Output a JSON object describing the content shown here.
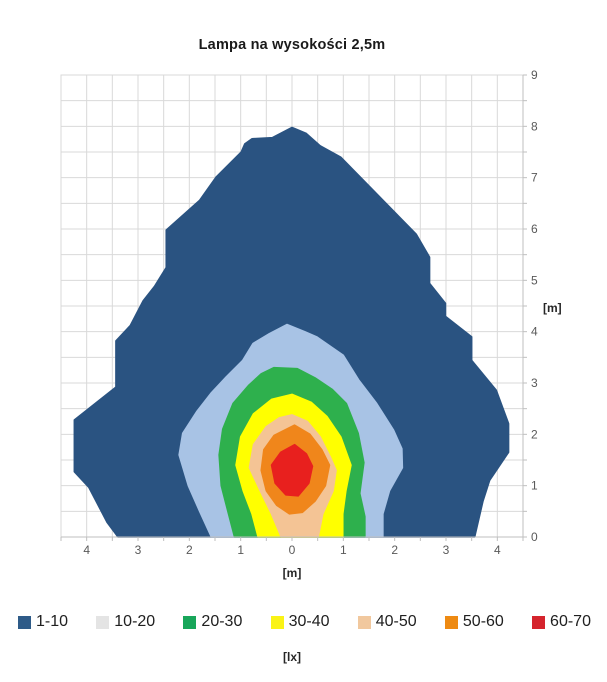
{
  "chart_data": {
    "type": "contour",
    "title": "Lampa na wysokości 2,5m",
    "xlabel": "[m]",
    "ylabel": "[m]",
    "legend_label": "[lx]",
    "x_range": [
      -4.5,
      4.5
    ],
    "y_range": [
      0,
      9
    ],
    "grid_step": 0.5,
    "grid_on": true,
    "grid_color": "#D9D9D9",
    "axis_color": "#BFBFBF",
    "tick_color": "#BFBFBF",
    "tick_label_color": "#595959",
    "x_tick_values": [
      -4,
      -3,
      -2,
      -1,
      0,
      1,
      2,
      3,
      4
    ],
    "x_tick_labels": [
      "4",
      "3",
      "2",
      "1",
      "0",
      "1",
      "2",
      "3",
      "4"
    ],
    "y_tick_values": [
      0,
      1,
      2,
      3,
      4,
      5,
      6,
      7,
      8,
      9
    ],
    "y_tick_labels": [
      "0",
      "1",
      "2",
      "3",
      "4",
      "5",
      "6",
      "7",
      "8",
      "9"
    ],
    "legend_position": "bottom",
    "bands": [
      {
        "label": "1-10",
        "color": "#2A5381",
        "legend_color": "#2E5B88",
        "polygon": [
          [
            0,
            7.98
          ],
          [
            0.28,
            7.86
          ],
          [
            0.55,
            7.62
          ],
          [
            0.95,
            7.4
          ],
          [
            2.42,
            5.9
          ],
          [
            2.68,
            5.45
          ],
          [
            2.68,
            4.94
          ],
          [
            2.99,
            4.55
          ],
          [
            2.99,
            4.3
          ],
          [
            3.5,
            3.9
          ],
          [
            3.5,
            3.44
          ],
          [
            3.98,
            2.86
          ],
          [
            4.22,
            2.21
          ],
          [
            4.22,
            1.65
          ],
          [
            3.85,
            1.1
          ],
          [
            3.72,
            0.7
          ],
          [
            3.56,
            0
          ],
          [
            -3.39,
            0
          ],
          [
            -3.6,
            0.28
          ],
          [
            -3.96,
            0.97
          ],
          [
            -4.24,
            1.27
          ],
          [
            -4.24,
            2.28
          ],
          [
            -3.43,
            2.92
          ],
          [
            -3.43,
            3.82
          ],
          [
            -3.15,
            4.12
          ],
          [
            -2.9,
            4.6
          ],
          [
            -2.68,
            4.88
          ],
          [
            -2.45,
            5.25
          ],
          [
            -2.45,
            5.98
          ],
          [
            -1.8,
            6.56
          ],
          [
            -1.48,
            7.01
          ],
          [
            -0.99,
            7.5
          ],
          [
            -0.92,
            7.66
          ],
          [
            -0.78,
            7.76
          ],
          [
            -0.38,
            7.78
          ]
        ]
      },
      {
        "label": "10-20",
        "color": "#A8C3E5",
        "legend_color": "#E4E4E4",
        "polygon": [
          [
            -0.1,
            4.14
          ],
          [
            0.25,
            4.0
          ],
          [
            0.48,
            3.9
          ],
          [
            1.0,
            3.54
          ],
          [
            1.3,
            3.06
          ],
          [
            1.65,
            2.6
          ],
          [
            1.98,
            2.08
          ],
          [
            2.14,
            1.72
          ],
          [
            2.15,
            1.35
          ],
          [
            1.9,
            0.9
          ],
          [
            1.77,
            0.45
          ],
          [
            1.77,
            0
          ],
          [
            -1.57,
            0
          ],
          [
            -1.8,
            0.5
          ],
          [
            -2.02,
            1.0
          ],
          [
            -2.2,
            1.6
          ],
          [
            -2.13,
            2.02
          ],
          [
            -1.85,
            2.45
          ],
          [
            -1.58,
            2.8
          ],
          [
            -1.28,
            3.12
          ],
          [
            -0.96,
            3.44
          ],
          [
            -0.76,
            3.77
          ],
          [
            -0.44,
            3.96
          ]
        ]
      },
      {
        "label": "20-30",
        "color": "#2EB04D",
        "legend_color": "#18A65A",
        "polygon": [
          [
            -0.35,
            3.3
          ],
          [
            0.1,
            3.28
          ],
          [
            0.45,
            3.1
          ],
          [
            0.78,
            2.88
          ],
          [
            1.06,
            2.6
          ],
          [
            1.29,
            2.02
          ],
          [
            1.4,
            1.45
          ],
          [
            1.32,
            0.85
          ],
          [
            1.42,
            0.4
          ],
          [
            1.42,
            0
          ],
          [
            -1.12,
            0
          ],
          [
            -1.25,
            0.5
          ],
          [
            -1.38,
            1.0
          ],
          [
            -1.42,
            1.6
          ],
          [
            -1.35,
            2.1
          ],
          [
            -1.15,
            2.6
          ],
          [
            -0.85,
            2.95
          ],
          [
            -0.6,
            3.18
          ]
        ]
      },
      {
        "label": "30-40",
        "color": "#FFFF00",
        "legend_color": "#FAF316",
        "polygon": [
          [
            0,
            2.78
          ],
          [
            0.38,
            2.62
          ],
          [
            0.68,
            2.35
          ],
          [
            0.95,
            1.95
          ],
          [
            1.15,
            1.4
          ],
          [
            1.05,
            0.9
          ],
          [
            0.99,
            0.45
          ],
          [
            0.99,
            0
          ],
          [
            -0.66,
            0
          ],
          [
            -0.78,
            0.45
          ],
          [
            -0.95,
            0.9
          ],
          [
            -1.09,
            1.4
          ],
          [
            -1.0,
            1.95
          ],
          [
            -0.75,
            2.4
          ],
          [
            -0.4,
            2.68
          ]
        ]
      },
      {
        "label": "40-50",
        "color": "#F4C495",
        "legend_color": "#F1C89E",
        "polygon": [
          [
            0,
            2.38
          ],
          [
            0.3,
            2.25
          ],
          [
            0.55,
            1.95
          ],
          [
            0.75,
            1.55
          ],
          [
            0.86,
            1.3
          ],
          [
            0.8,
            0.9
          ],
          [
            0.6,
            0.45
          ],
          [
            0.51,
            0
          ],
          [
            -0.21,
            0
          ],
          [
            -0.4,
            0.45
          ],
          [
            -0.62,
            0.9
          ],
          [
            -0.83,
            1.35
          ],
          [
            -0.75,
            1.8
          ],
          [
            -0.5,
            2.15
          ],
          [
            -0.25,
            2.32
          ]
        ]
      },
      {
        "label": "50-60",
        "color": "#F0861B",
        "legend_color": "#EE8A12",
        "polygon": [
          [
            0.05,
            2.18
          ],
          [
            0.35,
            2.0
          ],
          [
            0.58,
            1.7
          ],
          [
            0.73,
            1.4
          ],
          [
            0.65,
            1.0
          ],
          [
            0.45,
            0.7
          ],
          [
            0.2,
            0.48
          ],
          [
            -0.05,
            0.45
          ],
          [
            -0.3,
            0.62
          ],
          [
            -0.5,
            0.9
          ],
          [
            -0.6,
            1.3
          ],
          [
            -0.55,
            1.7
          ],
          [
            -0.35,
            1.98
          ]
        ]
      },
      {
        "label": "60-70",
        "color": "#E8201E",
        "legend_color": "#D5242D",
        "polygon": [
          [
            0.05,
            1.8
          ],
          [
            0.28,
            1.62
          ],
          [
            0.4,
            1.38
          ],
          [
            0.33,
            1.05
          ],
          [
            0.12,
            0.8
          ],
          [
            -0.12,
            0.82
          ],
          [
            -0.33,
            1.05
          ],
          [
            -0.4,
            1.4
          ],
          [
            -0.22,
            1.65
          ]
        ]
      }
    ]
  }
}
